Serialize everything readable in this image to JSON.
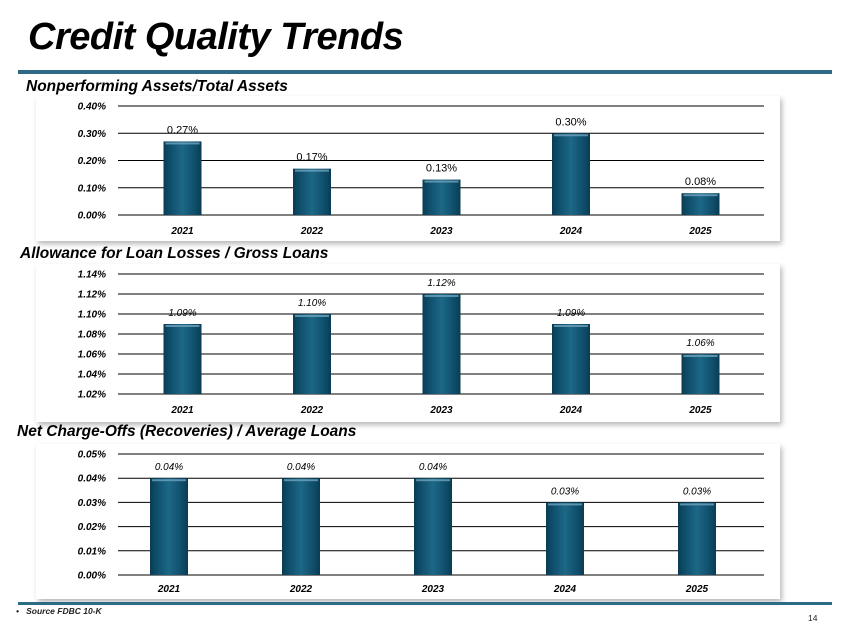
{
  "page": {
    "title": "Credit Quality Trends",
    "footnote_bullet": "•",
    "footnote": "Source FDBC 10-K",
    "page_number": "14"
  },
  "colors": {
    "bar": "#0f4f6c",
    "rule": "#2d6a84",
    "grid": "#000000"
  },
  "chart_data": [
    {
      "type": "bar",
      "title": "Nonperforming Assets/Total Assets",
      "categories": [
        "2021",
        "2022",
        "2023",
        "2024",
        "2025"
      ],
      "values": [
        0.27,
        0.17,
        0.13,
        0.3,
        0.08
      ],
      "data_labels": [
        "0.27%",
        "0.17%",
        "0.13%",
        "0.30%",
        "0.08%"
      ],
      "ylim": [
        0.0,
        0.4
      ],
      "yticks": [
        0.0,
        0.1,
        0.2,
        0.3,
        0.4
      ],
      "ytick_labels": [
        "0.00%",
        "0.10%",
        "0.20%",
        "0.30%",
        "0.40%"
      ],
      "grid": true
    },
    {
      "type": "bar",
      "title": "Allowance for Loan Losses / Gross Loans",
      "categories": [
        "2021",
        "2022",
        "2023",
        "2024",
        "2025"
      ],
      "values": [
        1.09,
        1.1,
        1.12,
        1.09,
        1.06
      ],
      "data_labels": [
        "1.09%",
        "1.10%",
        "1.12%",
        "1.09%",
        "1.06%"
      ],
      "ylim": [
        1.02,
        1.14
      ],
      "yticks": [
        1.02,
        1.04,
        1.06,
        1.08,
        1.1,
        1.12,
        1.14
      ],
      "ytick_labels": [
        "1.02%",
        "1.04%",
        "1.06%",
        "1.08%",
        "1.10%",
        "1.12%",
        "1.14%"
      ],
      "grid": true
    },
    {
      "type": "bar",
      "title": "Net Charge-Offs (Recoveries) / Average Loans",
      "categories": [
        "2021",
        "2022",
        "2023",
        "2024",
        "2025"
      ],
      "values": [
        0.04,
        0.04,
        0.04,
        0.03,
        0.03
      ],
      "data_labels": [
        "0.04%",
        "0.04%",
        "0.04%",
        "0.03%",
        "0.03%"
      ],
      "ylim": [
        0.0,
        0.05
      ],
      "yticks": [
        0.0,
        0.01,
        0.02,
        0.03,
        0.04,
        0.05
      ],
      "ytick_labels": [
        "0.00%",
        "0.01%",
        "0.02%",
        "0.03%",
        "0.04%",
        "0.05%"
      ],
      "grid": true
    }
  ]
}
